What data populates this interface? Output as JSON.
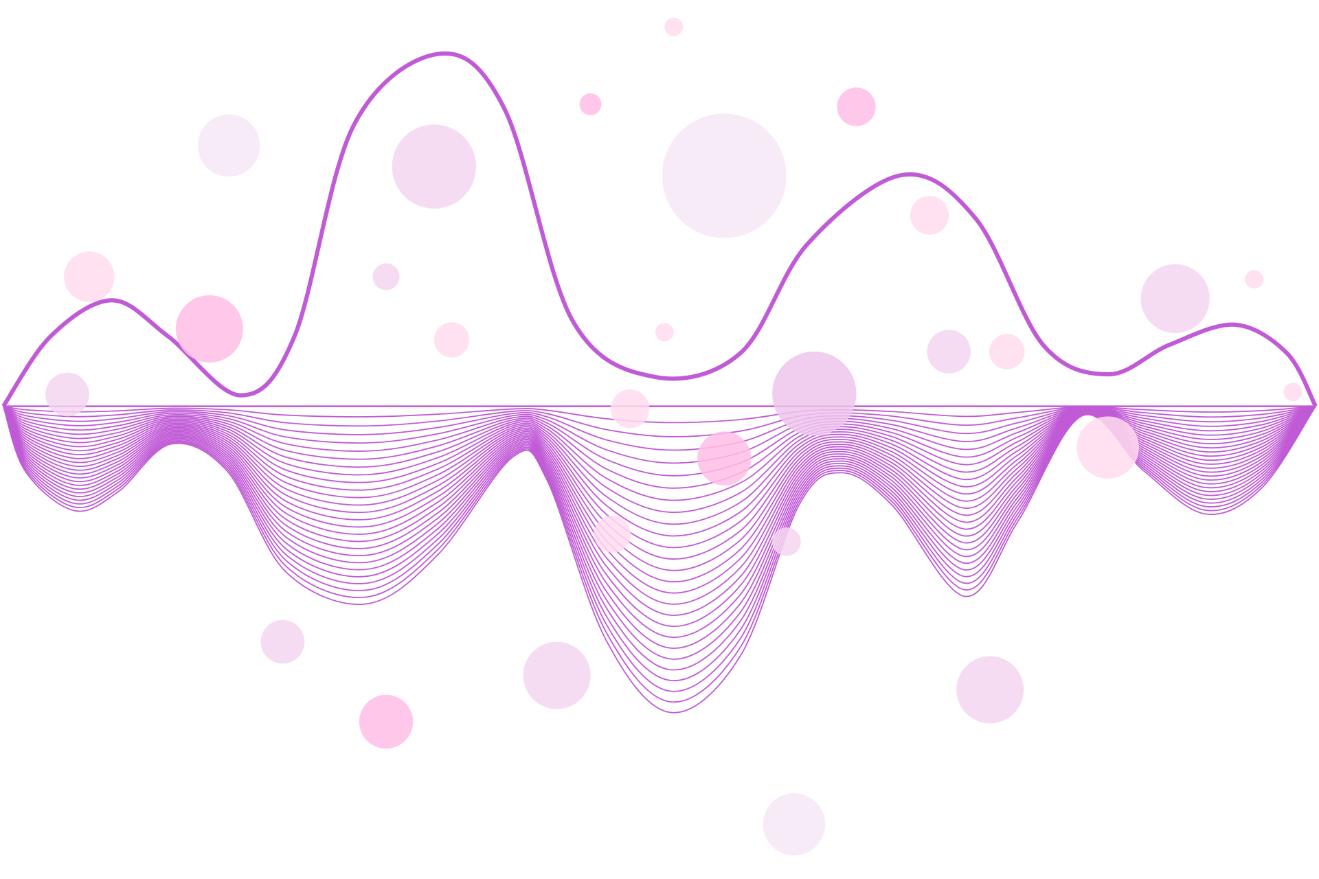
{
  "artwork": {
    "line_color": "#c05ad6",
    "background": "#ffffff",
    "bubble_colors": [
      "#ffbde6",
      "#ffdcef",
      "#f5d6f0",
      "#f7e8f7",
      "#efc6ec"
    ],
    "wave_line_count": 26
  }
}
